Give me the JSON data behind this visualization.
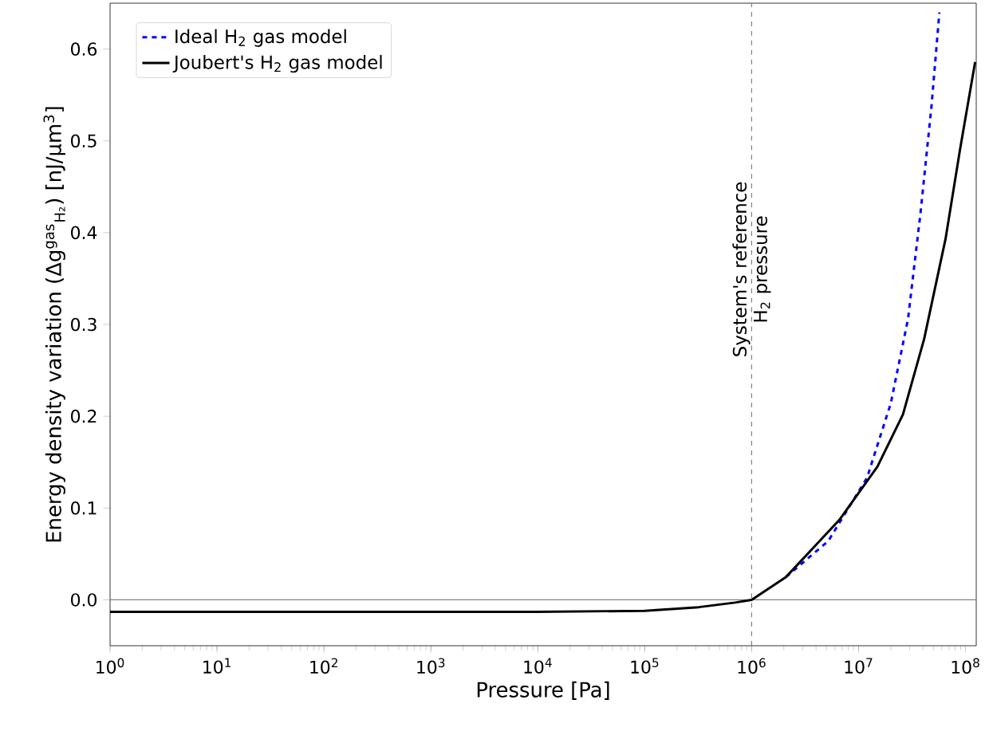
{
  "chart_data": {
    "type": "line",
    "xlabel": "Pressure [Pa]",
    "ylabel": "Energy density variation (Δg$^{gas}$$_{H₂}$) [nJ/µm$^{3}$]",
    "log": "x",
    "xlim": [
      1,
      126000000.0
    ],
    "ylim": [
      -0.05,
      0.65
    ],
    "xticks": [
      {
        "value": 1,
        "label": "10$^{0}$"
      },
      {
        "value": 10,
        "label": "10$^{1}$"
      },
      {
        "value": 100,
        "label": "10$^{2}$"
      },
      {
        "value": 1000,
        "label": "10$^{3}$"
      },
      {
        "value": 10000,
        "label": "10$^{4}$"
      },
      {
        "value": 100000,
        "label": "10$^{5}$"
      },
      {
        "value": 1000000,
        "label": "10$^{6}$"
      },
      {
        "value": 10000000,
        "label": "10$^{7}$"
      },
      {
        "value": 100000000,
        "label": "10$^{8}$"
      }
    ],
    "yticks": [
      {
        "value": 0,
        "label": "0.0"
      },
      0.1,
      0.2,
      0.3,
      0.4,
      0.5,
      0.6
    ],
    "grid": false,
    "legend": "top left",
    "marker": "none",
    "ref_lines": [
      {
        "axis": "x",
        "value": 1000000,
        "label": "System's reference H$_{2}$ pressure",
        "color": "#808080",
        "line_style": "dashed"
      },
      {
        "axis": "y",
        "value": 0,
        "color": "#808080",
        "line_style": "solid"
      }
    ],
    "series": [
      {
        "name": "Ideal H$_{2}$ gas model",
        "color": "#0000ff",
        "line_style": "dashed",
        "x": [
          2100000,
          5200000,
          12000000,
          20000000,
          29000000,
          38000000,
          48000000,
          57000000
        ],
        "values": [
          0.025,
          0.064,
          0.133,
          0.214,
          0.306,
          0.422,
          0.537,
          0.64
        ]
      },
      {
        "name": "Joubert's H$_{2}$ gas model",
        "color": "#000000",
        "line_style": "solid",
        "x": [
          1,
          10,
          100,
          1000,
          10000,
          100000,
          320000,
          700000,
          1000000,
          2100000,
          6600000,
          15000000,
          26000000,
          41000000,
          65000000,
          89000000,
          123000000
        ],
        "values": [
          -0.013,
          -0.013,
          -0.013,
          -0.013,
          -0.013,
          -0.012,
          -0.008,
          -0.003,
          0,
          0.025,
          0.087,
          0.145,
          0.202,
          0.284,
          0.393,
          0.491,
          0.586
        ]
      }
    ]
  }
}
